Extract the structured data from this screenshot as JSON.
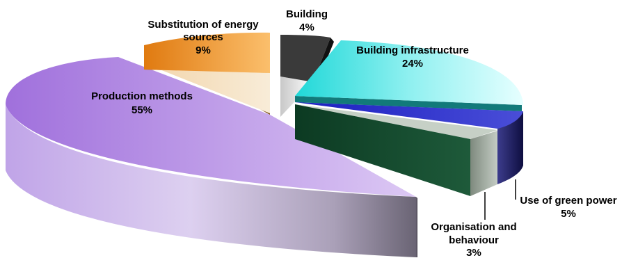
{
  "chart_data": {
    "type": "pie",
    "title": "",
    "slices": [
      {
        "label": "Building infrastructure",
        "value": 24,
        "value_label": "24%",
        "color": "#3fe3e3"
      },
      {
        "label": "Use of green power",
        "value": 5,
        "value_label": "5%",
        "color": "#1e22b8"
      },
      {
        "label": "Organisation and behaviour",
        "value": 3,
        "value_label": "3%",
        "color": "#bcc8bc"
      },
      {
        "label": "Production methods",
        "value": 55,
        "value_label": "55%",
        "color": "#b98ae0"
      },
      {
        "label": "Substitution of energy sources",
        "value": 9,
        "value_label": "9%",
        "color": "#f0961e"
      },
      {
        "label": "Building",
        "value": 4,
        "value_label": "4%",
        "color": "#3a3a3a"
      }
    ],
    "legend": "none",
    "style": "3d-exploded"
  }
}
